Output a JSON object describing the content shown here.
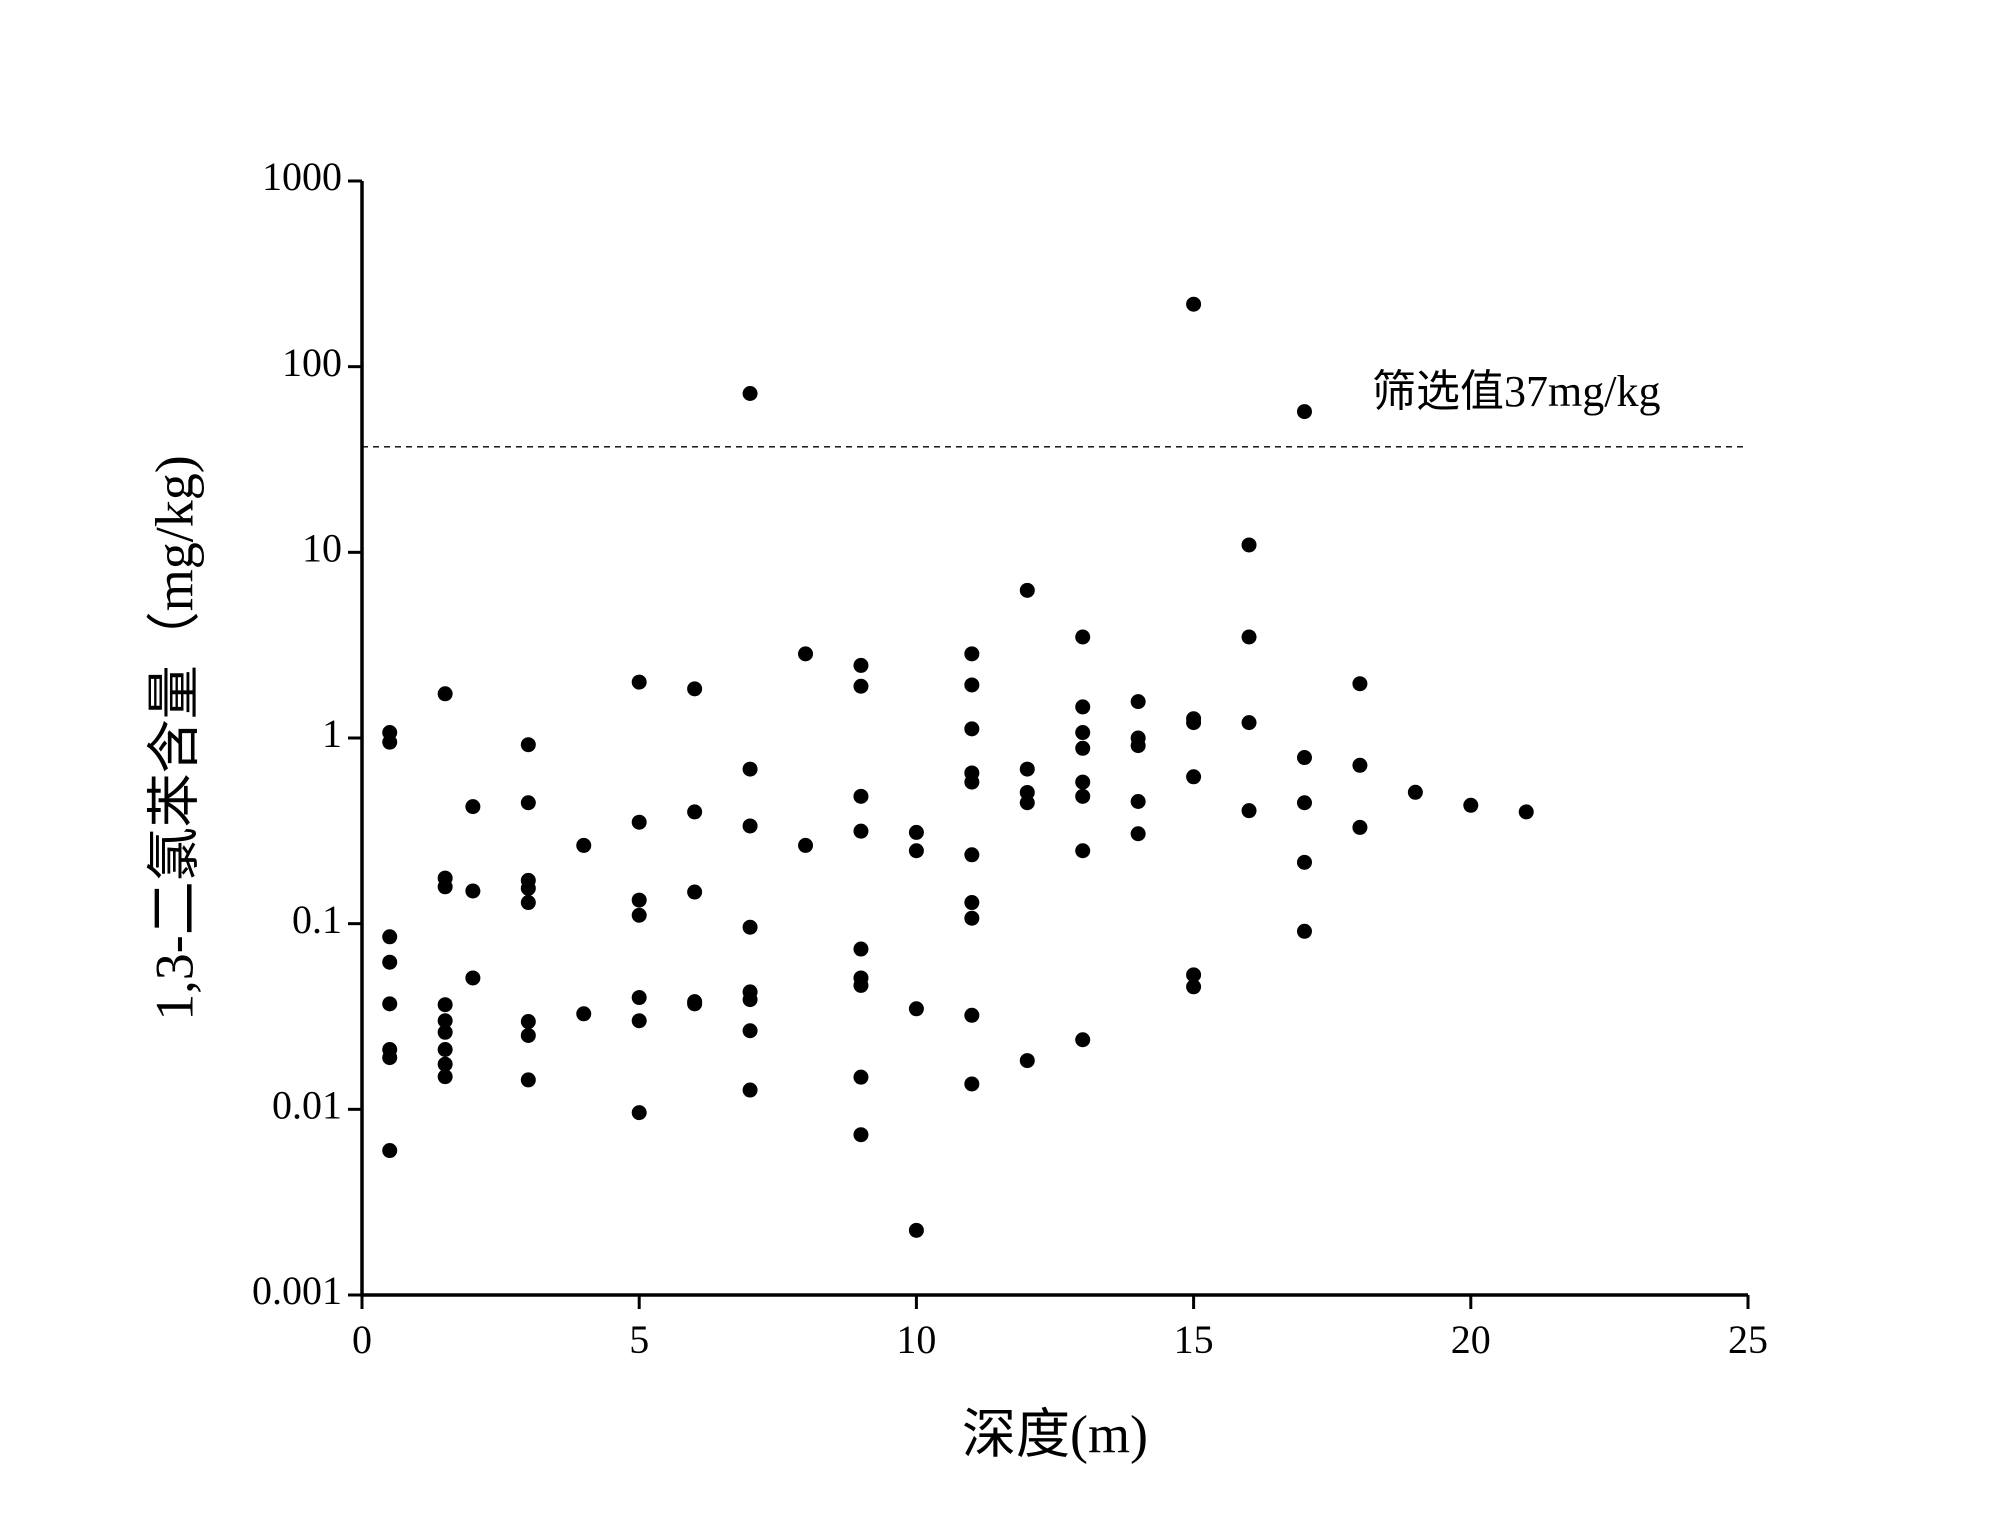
{
  "chart_data": {
    "type": "scatter",
    "x_label": "深度(m)",
    "y_label": "1,3-二氯苯含量（mg/kg)",
    "xlim": [
      0,
      25
    ],
    "xticks": [
      0,
      5,
      10,
      15,
      20,
      25
    ],
    "ylim": [
      0.001,
      1000
    ],
    "yticks": [
      0.001,
      0.01,
      0.1,
      1,
      10,
      100,
      1000
    ],
    "log_y": true,
    "grid": false,
    "color": "#000000",
    "reference_line": {
      "value": 37,
      "label": "筛选值37mg/kg"
    },
    "x": [
      0.5,
      0.5,
      0.5,
      0.5,
      0.5,
      0.5,
      0.5,
      0.5,
      1.5,
      1.5,
      1.5,
      1.5,
      1.5,
      1.5,
      1.5,
      1.5,
      1.5,
      2,
      2,
      2,
      3,
      3,
      3,
      3,
      3,
      3,
      3,
      3,
      4,
      4,
      5,
      5,
      5,
      5,
      5,
      5,
      5,
      6,
      6,
      6,
      6,
      6,
      7,
      7,
      7,
      7,
      7,
      7,
      7,
      7,
      8,
      8,
      9,
      9,
      9,
      9,
      9,
      9,
      9,
      9,
      9,
      10,
      10,
      10,
      10,
      11,
      11,
      11,
      11,
      11,
      11,
      11,
      11,
      11,
      11,
      12,
      12,
      12,
      12,
      12,
      13,
      13,
      13,
      13,
      13,
      13,
      13,
      13,
      14,
      14,
      14,
      14,
      14,
      15,
      15,
      15,
      15,
      15,
      15,
      16,
      16,
      16,
      16,
      17,
      17,
      17,
      17,
      17,
      18,
      18,
      18,
      19,
      20,
      21
    ],
    "values": [
      1.07,
      0.95,
      0.085,
      0.062,
      0.037,
      0.021,
      0.019,
      0.006,
      1.73,
      0.176,
      0.158,
      0.0366,
      0.03,
      0.026,
      0.021,
      0.0175,
      0.015,
      0.427,
      0.15,
      0.051,
      0.92,
      0.448,
      0.171,
      0.155,
      0.13,
      0.0297,
      0.025,
      0.0144,
      0.264,
      0.0327,
      2.0,
      0.352,
      0.134,
      0.111,
      0.04,
      0.03,
      0.0096,
      1.84,
      0.4,
      0.148,
      0.038,
      0.037,
      71.7,
      0.68,
      0.336,
      0.0957,
      0.0429,
      0.039,
      0.0265,
      0.0127,
      2.84,
      0.264,
      2.46,
      1.9,
      0.485,
      0.315,
      0.073,
      0.051,
      0.0465,
      0.0149,
      0.0073,
      0.31,
      0.247,
      0.0348,
      0.00223,
      2.84,
      1.93,
      1.12,
      0.648,
      0.579,
      0.235,
      0.13,
      0.107,
      0.0321,
      0.0137,
      6.24,
      0.68,
      0.509,
      0.448,
      0.0183,
      3.5,
      1.47,
      1.07,
      0.88,
      0.579,
      0.485,
      0.247,
      0.0237,
      1.57,
      1.0,
      0.91,
      0.455,
      0.305,
      217,
      1.27,
      1.21,
      0.618,
      0.053,
      0.0457,
      10.96,
      3.5,
      1.21,
      0.406,
      57.3,
      0.785,
      0.448,
      0.214,
      0.091,
      1.96,
      0.713,
      0.33,
      0.51,
      0.434,
      0.4
    ]
  }
}
